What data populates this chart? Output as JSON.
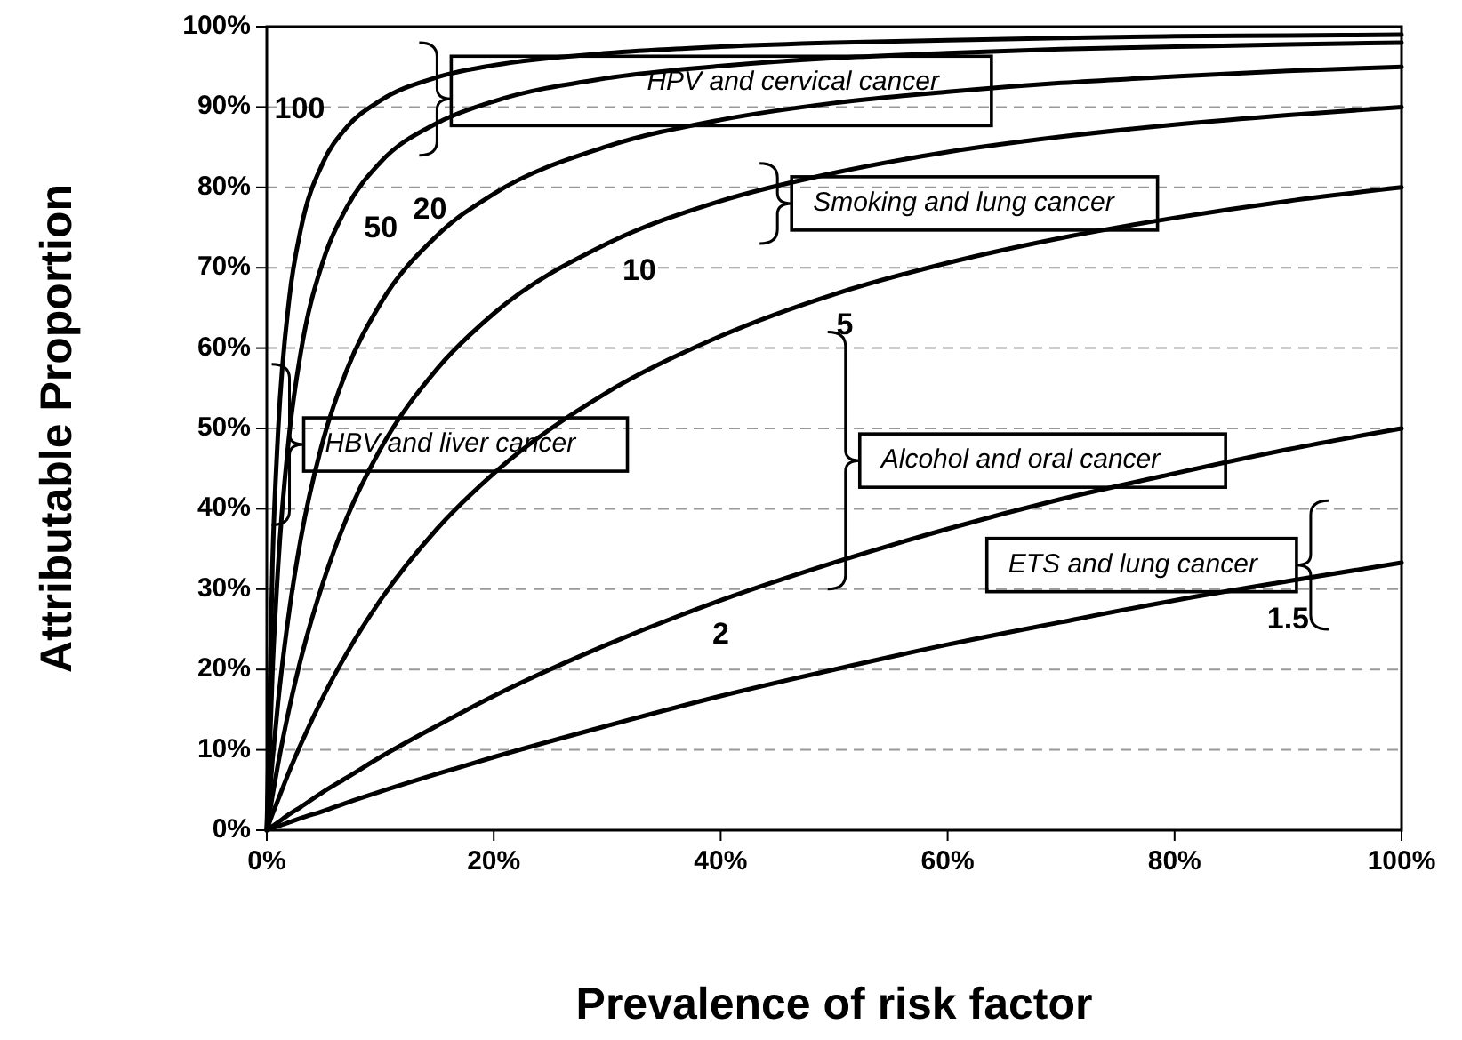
{
  "chart_data": {
    "type": "line",
    "xlabel": "Prevalence of risk factor",
    "ylabel": "Attributable Proportion",
    "x": [
      0,
      0.5,
      1,
      2,
      3,
      5,
      7,
      10,
      15,
      20,
      30,
      40,
      50,
      60,
      70,
      80,
      90,
      100
    ],
    "series": [
      {
        "name": "100",
        "color": "#000000",
        "values": [
          0,
          33.1,
          49.7,
          66.4,
          74.8,
          83.2,
          87.4,
          90.8,
          93.7,
          95.2,
          96.7,
          97.5,
          98.0,
          98.3,
          98.6,
          98.8,
          98.9,
          99.0
        ]
      },
      {
        "name": "50",
        "color": "#000000",
        "values": [
          0,
          19.7,
          32.9,
          49.5,
          59.5,
          71.0,
          77.4,
          83.1,
          88.0,
          90.7,
          93.6,
          95.1,
          96.1,
          96.7,
          97.2,
          97.5,
          97.8,
          98.0
        ]
      },
      {
        "name": "20",
        "color": "#000000",
        "values": [
          0,
          8.7,
          16.0,
          27.5,
          36.3,
          48.7,
          57.1,
          65.5,
          74.0,
          79.2,
          85.1,
          88.4,
          90.5,
          91.9,
          93.0,
          93.8,
          94.5,
          95.0
        ]
      },
      {
        "name": "10",
        "color": "#000000",
        "values": [
          0,
          4.3,
          8.3,
          15.3,
          21.3,
          31.0,
          38.7,
          47.4,
          57.4,
          64.3,
          73.0,
          78.3,
          81.8,
          84.4,
          86.3,
          87.8,
          89.0,
          90.0
        ]
      },
      {
        "name": "5",
        "color": "#000000",
        "values": [
          0,
          2.0,
          3.8,
          7.4,
          10.7,
          16.7,
          21.9,
          28.6,
          37.5,
          44.4,
          54.5,
          61.5,
          66.7,
          70.6,
          73.7,
          76.2,
          78.3,
          80.0
        ]
      },
      {
        "name": "2",
        "color": "#000000",
        "values": [
          0,
          0.5,
          1.0,
          2.0,
          2.9,
          4.8,
          6.5,
          9.1,
          13.0,
          16.7,
          23.1,
          28.6,
          33.3,
          37.5,
          41.2,
          44.4,
          47.4,
          50.0
        ]
      },
      {
        "name": "1.5",
        "color": "#000000",
        "values": [
          0,
          0.3,
          0.5,
          1.0,
          1.5,
          2.4,
          3.4,
          4.8,
          7.0,
          9.1,
          13.0,
          16.7,
          20.0,
          23.1,
          25.9,
          28.6,
          31.0,
          33.3
        ]
      }
    ],
    "xlim": [
      0,
      100
    ],
    "xticks": [
      {
        "value": 0,
        "label": "0%"
      },
      {
        "value": 20,
        "label": "20%"
      },
      {
        "value": 40,
        "label": "40%"
      },
      {
        "value": 60,
        "label": "60%"
      },
      {
        "value": 80,
        "label": "80%"
      },
      {
        "value": 100,
        "label": "100%"
      }
    ],
    "ylim": [
      0,
      100
    ],
    "yticks": [
      {
        "value": 0,
        "label": "0%"
      },
      {
        "value": 10,
        "label": "10%"
      },
      {
        "value": 20,
        "label": "20%"
      },
      {
        "value": 30,
        "label": "30%"
      },
      {
        "value": 40,
        "label": "40%"
      },
      {
        "value": 50,
        "label": "50%"
      },
      {
        "value": 60,
        "label": "60%"
      },
      {
        "value": 70,
        "label": "70%"
      },
      {
        "value": 80,
        "label": "80%"
      },
      {
        "value": 90,
        "label": "90%"
      },
      {
        "value": 100,
        "label": "100%"
      }
    ],
    "grid": "y",
    "marker": "none",
    "line_style": "solid",
    "annotations": [
      "HPV and cervical cancer",
      "Smoking and lung cancer",
      "HBV and liver cancer",
      "Alcohol and oral cancer",
      "ETS and lung cancer"
    ]
  }
}
